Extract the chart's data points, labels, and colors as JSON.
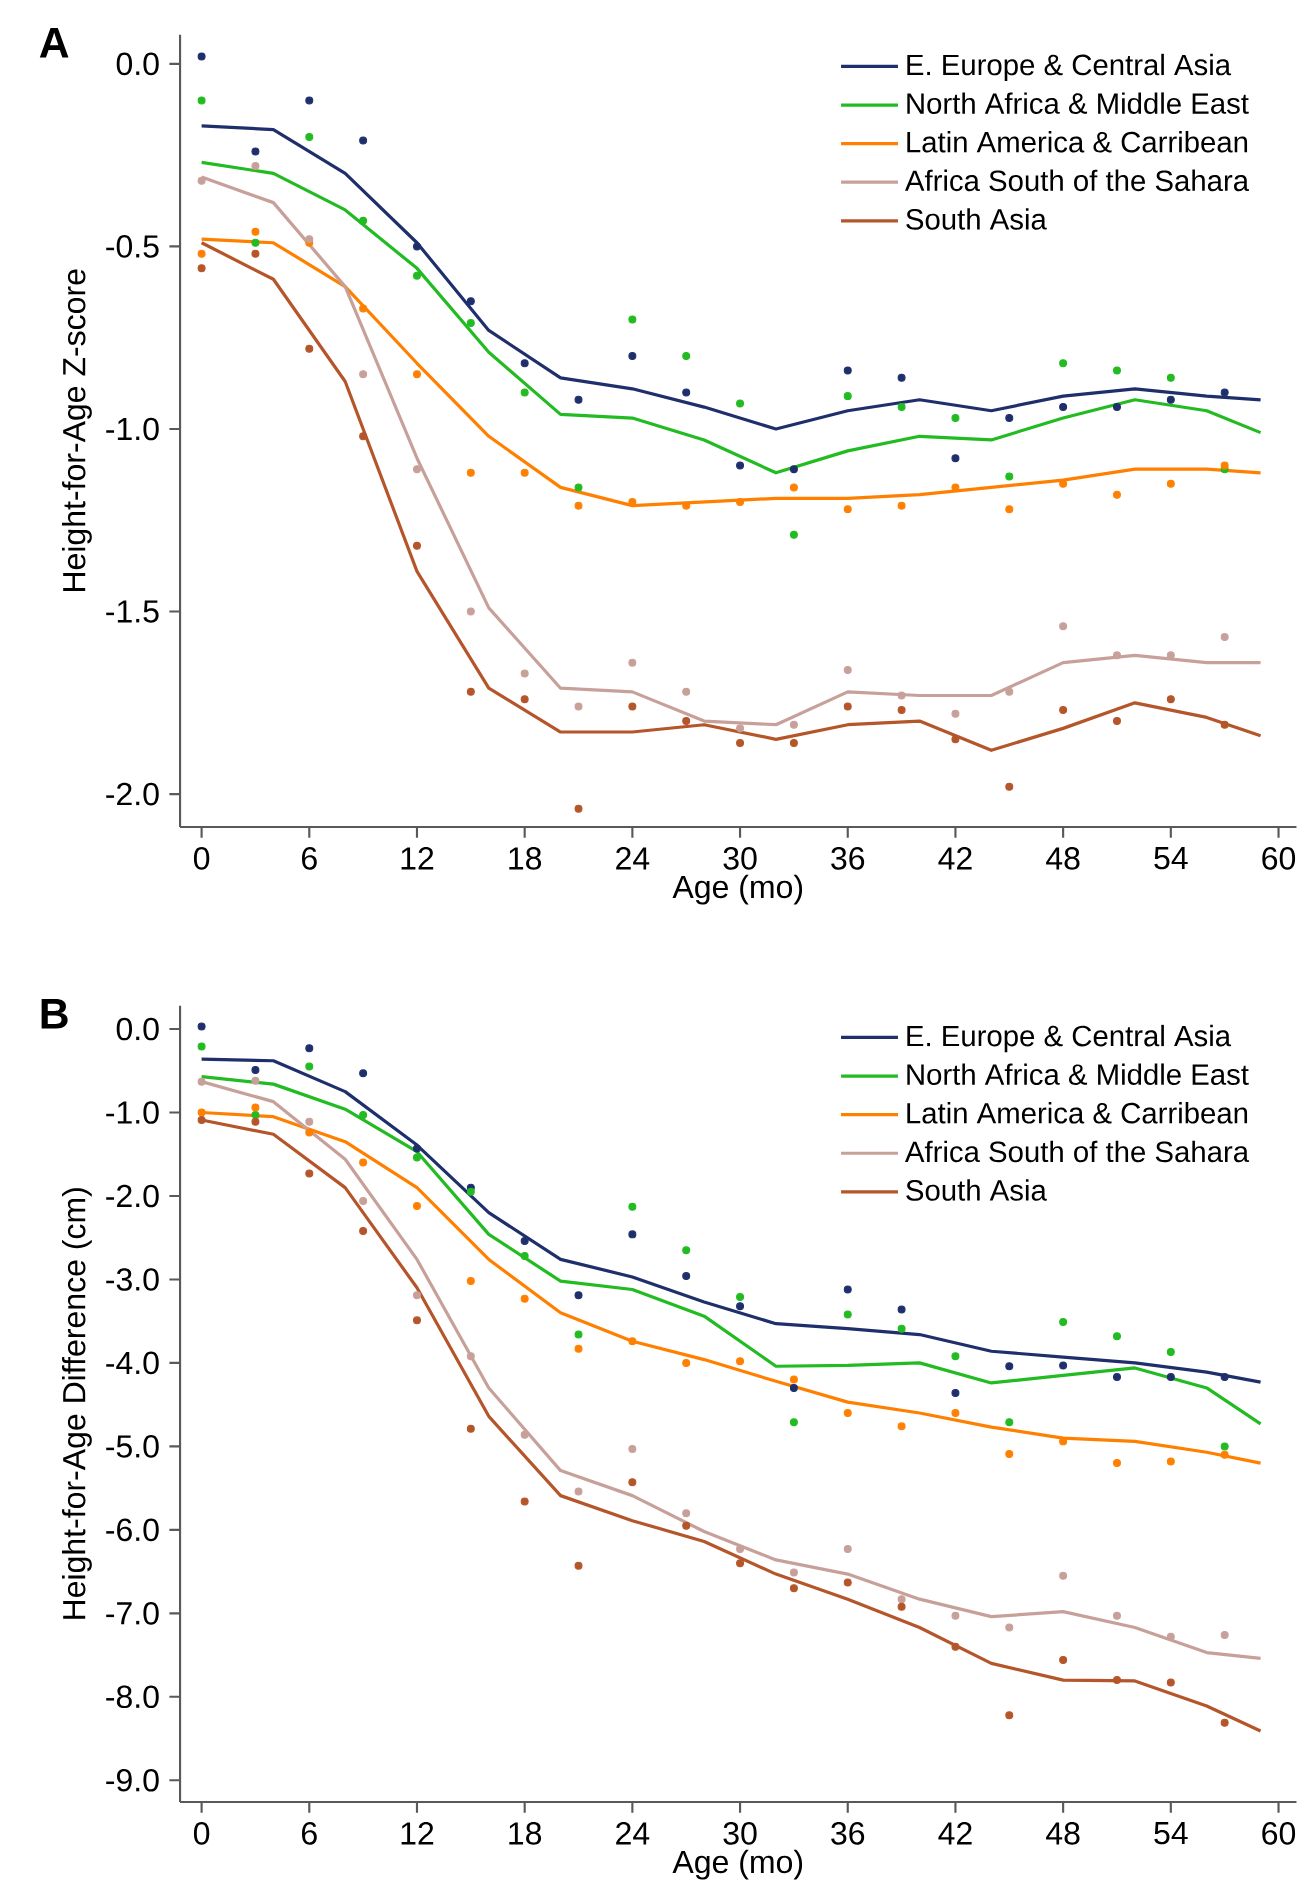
{
  "chart_data": [
    {
      "type": "line",
      "title": "A",
      "xlabel": "Age (mo)",
      "ylabel": "Height-for-Age Z-score",
      "legend": "top right",
      "xlim": [
        -1.2,
        61
      ],
      "xticks": [
        0,
        6,
        12,
        18,
        24,
        30,
        36,
        42,
        48,
        54,
        60
      ],
      "ylim": [
        -2.09,
        0.08
      ],
      "yticks": [
        {
          "value": 0,
          "label": "0.0"
        },
        {
          "value": -0.5,
          "label": "-0.5"
        },
        {
          "value": -1,
          "label": "-1.0"
        },
        {
          "value": -1.5,
          "label": "-1.5"
        },
        {
          "value": -2,
          "label": "-2.0"
        }
      ],
      "series": [
        {
          "type": "scatter",
          "color": "#1f2f6b",
          "x": [
            0,
            3,
            6,
            9,
            12,
            15,
            18,
            21,
            24,
            27,
            30,
            33,
            36,
            39,
            42,
            45,
            48,
            51,
            54,
            57
          ],
          "values": [
            0.02,
            -0.24,
            -0.1,
            -0.21,
            -0.5,
            -0.65,
            -0.82,
            -0.92,
            -0.8,
            -0.9,
            -1.1,
            -1.11,
            -0.84,
            -0.86,
            -1.08,
            -0.97,
            -0.94,
            -0.94,
            -0.92,
            -0.9
          ]
        },
        {
          "type": "scatter",
          "color": "#22bb22",
          "x": [
            0,
            3,
            6,
            9,
            12,
            15,
            18,
            21,
            24,
            27,
            30,
            33,
            36,
            39,
            42,
            45,
            48,
            51,
            54,
            57
          ],
          "values": [
            -0.1,
            -0.49,
            -0.2,
            -0.43,
            -0.58,
            -0.71,
            -0.9,
            -1.16,
            -0.7,
            -0.8,
            -0.93,
            -1.29,
            -0.91,
            -0.94,
            -0.97,
            -1.13,
            -0.82,
            -0.84,
            -0.86,
            -1.11
          ]
        },
        {
          "type": "scatter",
          "color": "#ff8000",
          "x": [
            0,
            3,
            6,
            9,
            12,
            15,
            18,
            21,
            24,
            27,
            30,
            33,
            36,
            39,
            42,
            45,
            48,
            51,
            54,
            57
          ],
          "values": [
            -0.52,
            -0.46,
            -0.49,
            -0.67,
            -0.85,
            -1.12,
            -1.12,
            -1.21,
            -1.2,
            -1.21,
            -1.2,
            -1.16,
            -1.22,
            -1.21,
            -1.16,
            -1.22,
            -1.15,
            -1.18,
            -1.15,
            -1.1
          ]
        },
        {
          "type": "scatter",
          "color": "#c8a09a",
          "x": [
            0,
            3,
            6,
            9,
            12,
            15,
            18,
            21,
            24,
            27,
            30,
            33,
            36,
            39,
            42,
            45,
            48,
            51,
            54,
            57
          ],
          "values": [
            -0.32,
            -0.28,
            -0.48,
            -0.85,
            -1.11,
            -1.5,
            -1.67,
            -1.76,
            -1.64,
            -1.72,
            -1.82,
            -1.81,
            -1.66,
            -1.73,
            -1.78,
            -1.72,
            -1.54,
            -1.62,
            -1.62,
            -1.57
          ]
        },
        {
          "type": "scatter",
          "color": "#b5552a",
          "x": [
            0,
            3,
            6,
            9,
            12,
            15,
            18,
            21,
            24,
            27,
            30,
            33,
            36,
            39,
            42,
            45,
            48,
            51,
            54,
            57
          ],
          "values": [
            -0.56,
            -0.52,
            -0.78,
            -1.02,
            -1.32,
            -1.72,
            -1.74,
            -2.04,
            -1.76,
            -1.8,
            -1.86,
            -1.86,
            -1.76,
            -1.77,
            -1.85,
            -1.98,
            -1.77,
            -1.8,
            -1.74,
            -1.81
          ]
        },
        {
          "name": "E. Europe & Central Asia",
          "color": "#1f2f6b",
          "x": [
            0,
            4,
            8,
            12,
            16,
            20,
            24,
            28,
            32,
            36,
            40,
            44,
            48,
            52,
            56,
            59
          ],
          "values": [
            -0.17,
            -0.18,
            -0.3,
            -0.49,
            -0.73,
            -0.86,
            -0.89,
            -0.94,
            -1.0,
            -0.95,
            -0.92,
            -0.95,
            -0.91,
            -0.89,
            -0.91,
            -0.92
          ]
        },
        {
          "name": "North Africa & Middle East",
          "color": "#22bb22",
          "x": [
            0,
            4,
            8,
            12,
            16,
            20,
            24,
            28,
            32,
            36,
            40,
            44,
            48,
            52,
            56,
            59
          ],
          "values": [
            -0.27,
            -0.3,
            -0.4,
            -0.56,
            -0.79,
            -0.96,
            -0.97,
            -1.03,
            -1.12,
            -1.06,
            -1.02,
            -1.03,
            -0.97,
            -0.92,
            -0.95,
            -1.01
          ]
        },
        {
          "name": "Latin America & Carribean",
          "color": "#ff8000",
          "x": [
            0,
            4,
            8,
            12,
            16,
            20,
            24,
            28,
            32,
            36,
            40,
            44,
            48,
            52,
            56,
            59
          ],
          "values": [
            -0.48,
            -0.49,
            -0.61,
            -0.82,
            -1.02,
            -1.16,
            -1.21,
            -1.2,
            -1.19,
            -1.19,
            -1.18,
            -1.16,
            -1.14,
            -1.11,
            -1.11,
            -1.12
          ]
        },
        {
          "name": "Africa South of the Sahara",
          "color": "#c8a09a",
          "x": [
            0,
            4,
            8,
            12,
            16,
            20,
            24,
            28,
            32,
            36,
            40,
            44,
            48,
            52,
            56,
            59
          ],
          "values": [
            -0.31,
            -0.38,
            -0.61,
            -1.08,
            -1.49,
            -1.71,
            -1.72,
            -1.8,
            -1.81,
            -1.72,
            -1.73,
            -1.73,
            -1.64,
            -1.62,
            -1.64,
            -1.64
          ]
        },
        {
          "name": "South Asia",
          "color": "#b5552a",
          "x": [
            0,
            4,
            8,
            12,
            16,
            20,
            24,
            28,
            32,
            36,
            40,
            44,
            48,
            52,
            56,
            59
          ],
          "values": [
            -0.49,
            -0.59,
            -0.87,
            -1.39,
            -1.71,
            -1.83,
            -1.83,
            -1.81,
            -1.85,
            -1.81,
            -1.8,
            -1.88,
            -1.82,
            -1.75,
            -1.79,
            -1.84
          ]
        }
      ]
    },
    {
      "type": "line",
      "title": "B",
      "xlabel": "Age (mo)",
      "ylabel": "Height-for-Age Difference (cm)",
      "legend": "top right",
      "xlim": [
        -1.2,
        61
      ],
      "xticks": [
        0,
        6,
        12,
        18,
        24,
        30,
        36,
        42,
        48,
        54,
        60
      ],
      "ylim": [
        -9.26,
        0.28
      ],
      "yticks": [
        {
          "value": 0,
          "label": "0.0"
        },
        {
          "value": -1,
          "label": "-1.0"
        },
        {
          "value": -2,
          "label": "-2.0"
        },
        {
          "value": -3,
          "label": "-3.0"
        },
        {
          "value": -4,
          "label": "-4.0"
        },
        {
          "value": -5,
          "label": "-5.0"
        },
        {
          "value": -6,
          "label": "-6.0"
        },
        {
          "value": -7,
          "label": "-7.0"
        },
        {
          "value": -8,
          "label": "-8.0"
        },
        {
          "value": -9,
          "label": "-9.0"
        }
      ],
      "series": [
        {
          "type": "scatter",
          "color": "#1f2f6b",
          "x": [
            0,
            3,
            6,
            9,
            12,
            15,
            18,
            21,
            24,
            27,
            30,
            33,
            36,
            39,
            42,
            45,
            48,
            51,
            54,
            57
          ],
          "values": [
            0.03,
            -0.49,
            -0.23,
            -0.53,
            -1.43,
            -1.9,
            -2.54,
            -3.19,
            -2.46,
            -2.96,
            -3.32,
            -4.3,
            -3.12,
            -3.36,
            -4.36,
            -4.04,
            -4.03,
            -4.17,
            -4.17,
            -4.17
          ]
        },
        {
          "type": "scatter",
          "color": "#22bb22",
          "x": [
            0,
            3,
            6,
            9,
            12,
            15,
            18,
            21,
            24,
            27,
            30,
            33,
            36,
            39,
            42,
            45,
            48,
            51,
            54,
            57
          ],
          "values": [
            -0.21,
            -1.03,
            -0.45,
            -1.03,
            -1.54,
            -1.95,
            -2.72,
            -3.66,
            -2.13,
            -2.65,
            -3.21,
            -4.71,
            -3.42,
            -3.59,
            -3.92,
            -4.71,
            -3.51,
            -3.68,
            -3.87,
            -5.0
          ]
        },
        {
          "type": "scatter",
          "color": "#ff8000",
          "x": [
            0,
            3,
            6,
            9,
            12,
            15,
            18,
            21,
            24,
            27,
            30,
            33,
            36,
            39,
            42,
            45,
            48,
            51,
            54,
            57
          ],
          "values": [
            -1.0,
            -0.94,
            -1.24,
            -1.6,
            -2.12,
            -3.02,
            -3.23,
            -3.83,
            -3.74,
            -4.0,
            -3.98,
            -4.2,
            -4.6,
            -4.76,
            -4.6,
            -5.09,
            -4.94,
            -5.2,
            -5.18,
            -5.1
          ]
        },
        {
          "type": "scatter",
          "color": "#c8a09a",
          "x": [
            0,
            3,
            6,
            9,
            12,
            15,
            18,
            21,
            24,
            27,
            30,
            33,
            36,
            39,
            42,
            45,
            48,
            51,
            54,
            57
          ],
          "values": [
            -0.63,
            -0.62,
            -1.11,
            -2.06,
            -3.19,
            -3.92,
            -4.86,
            -5.54,
            -5.03,
            -5.8,
            -6.23,
            -6.51,
            -6.23,
            -6.83,
            -7.03,
            -7.17,
            -6.55,
            -7.03,
            -7.28,
            -7.26
          ]
        },
        {
          "type": "scatter",
          "color": "#b5552a",
          "x": [
            0,
            3,
            6,
            9,
            12,
            15,
            18,
            21,
            24,
            27,
            30,
            33,
            36,
            39,
            42,
            45,
            48,
            51,
            54,
            57
          ],
          "values": [
            -1.09,
            -1.11,
            -1.73,
            -2.42,
            -3.49,
            -4.79,
            -5.66,
            -6.43,
            -5.43,
            -5.95,
            -6.4,
            -6.7,
            -6.63,
            -6.92,
            -7.4,
            -8.22,
            -7.56,
            -7.8,
            -7.83,
            -8.31
          ]
        },
        {
          "name": "E. Europe & Central Asia",
          "color": "#1f2f6b",
          "x": [
            0,
            4,
            8,
            12,
            16,
            20,
            24,
            28,
            32,
            36,
            40,
            44,
            48,
            52,
            56,
            59
          ],
          "values": [
            -0.36,
            -0.38,
            -0.75,
            -1.39,
            -2.2,
            -2.76,
            -2.97,
            -3.27,
            -3.53,
            -3.59,
            -3.66,
            -3.86,
            -3.93,
            -4.0,
            -4.11,
            -4.23
          ]
        },
        {
          "name": "North Africa & Middle East",
          "color": "#22bb22",
          "x": [
            0,
            4,
            8,
            12,
            16,
            20,
            24,
            28,
            32,
            36,
            40,
            44,
            48,
            52,
            56,
            59
          ],
          "values": [
            -0.57,
            -0.66,
            -0.96,
            -1.47,
            -2.46,
            -3.02,
            -3.12,
            -3.44,
            -4.04,
            -4.03,
            -4.0,
            -4.24,
            -4.15,
            -4.06,
            -4.3,
            -4.73
          ]
        },
        {
          "name": "Latin America & Carribean",
          "color": "#ff8000",
          "x": [
            0,
            4,
            8,
            12,
            16,
            20,
            24,
            28,
            32,
            36,
            40,
            44,
            48,
            52,
            56,
            59
          ],
          "values": [
            -1.0,
            -1.05,
            -1.35,
            -1.9,
            -2.76,
            -3.4,
            -3.74,
            -3.96,
            -4.22,
            -4.47,
            -4.6,
            -4.77,
            -4.9,
            -4.94,
            -5.07,
            -5.2
          ]
        },
        {
          "name": "Africa South of the Sahara",
          "color": "#c8a09a",
          "x": [
            0,
            4,
            8,
            12,
            16,
            20,
            24,
            28,
            32,
            36,
            40,
            44,
            48,
            52,
            56,
            59
          ],
          "values": [
            -0.63,
            -0.87,
            -1.56,
            -2.76,
            -4.3,
            -5.29,
            -5.59,
            -6.02,
            -6.36,
            -6.53,
            -6.83,
            -7.04,
            -6.98,
            -7.17,
            -7.47,
            -7.54
          ]
        },
        {
          "name": "South Asia",
          "color": "#b5552a",
          "x": [
            0,
            4,
            8,
            12,
            16,
            20,
            24,
            28,
            32,
            36,
            40,
            44,
            48,
            52,
            56,
            59
          ],
          "values": [
            -1.09,
            -1.26,
            -1.9,
            -3.1,
            -4.64,
            -5.59,
            -5.89,
            -6.14,
            -6.53,
            -6.83,
            -7.17,
            -7.6,
            -7.8,
            -7.81,
            -8.11,
            -8.41
          ]
        }
      ]
    }
  ]
}
